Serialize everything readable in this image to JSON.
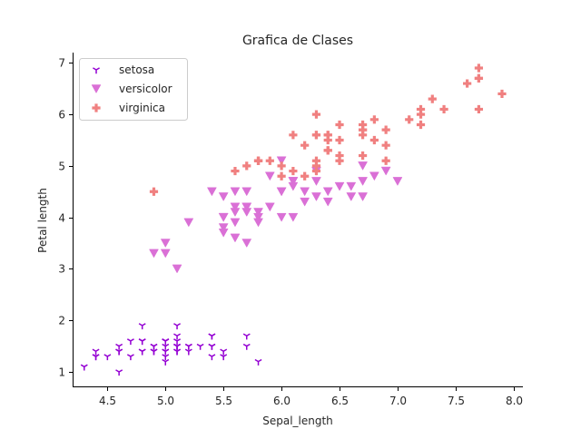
{
  "chart_data": {
    "type": "scatter",
    "title": "Grafica de Clases",
    "xlabel": "Sepal_length",
    "ylabel": "Petal length",
    "xlim": [
      4.2,
      8.08
    ],
    "ylim": [
      0.7,
      7.2
    ],
    "xticks": [
      4.5,
      5.0,
      5.5,
      6.0,
      6.5,
      7.0,
      7.5,
      8.0
    ],
    "xtick_labels": [
      "4.5",
      "5.0",
      "5.5",
      "6.0",
      "6.5",
      "7.0",
      "7.5",
      "8.0"
    ],
    "yticks": [
      1,
      2,
      3,
      4,
      5,
      6,
      7
    ],
    "ytick_labels": [
      "1",
      "2",
      "3",
      "4",
      "5",
      "6",
      "7"
    ],
    "grid": false,
    "legend_position": "top-left",
    "series": [
      {
        "name": "setosa",
        "marker": "tri-down",
        "color": "#9400D3",
        "points": [
          [
            5.1,
            1.4
          ],
          [
            4.9,
            1.4
          ],
          [
            4.7,
            1.3
          ],
          [
            4.6,
            1.5
          ],
          [
            5.0,
            1.4
          ],
          [
            5.4,
            1.7
          ],
          [
            4.6,
            1.4
          ],
          [
            5.0,
            1.5
          ],
          [
            4.4,
            1.4
          ],
          [
            4.9,
            1.5
          ],
          [
            5.4,
            1.5
          ],
          [
            4.8,
            1.6
          ],
          [
            4.8,
            1.4
          ],
          [
            4.3,
            1.1
          ],
          [
            5.8,
            1.2
          ],
          [
            5.7,
            1.5
          ],
          [
            5.4,
            1.3
          ],
          [
            5.1,
            1.4
          ],
          [
            5.7,
            1.7
          ],
          [
            5.1,
            1.5
          ],
          [
            5.4,
            1.7
          ],
          [
            5.1,
            1.5
          ],
          [
            4.6,
            1.0
          ],
          [
            5.1,
            1.7
          ],
          [
            4.8,
            1.9
          ],
          [
            5.0,
            1.6
          ],
          [
            5.0,
            1.6
          ],
          [
            5.2,
            1.5
          ],
          [
            5.2,
            1.4
          ],
          [
            4.7,
            1.6
          ],
          [
            4.8,
            1.6
          ],
          [
            5.4,
            1.5
          ],
          [
            5.2,
            1.5
          ],
          [
            5.5,
            1.4
          ],
          [
            4.9,
            1.5
          ],
          [
            5.0,
            1.2
          ],
          [
            5.5,
            1.3
          ],
          [
            4.9,
            1.4
          ],
          [
            4.4,
            1.3
          ],
          [
            5.1,
            1.5
          ],
          [
            5.0,
            1.3
          ],
          [
            4.5,
            1.3
          ],
          [
            4.4,
            1.3
          ],
          [
            5.0,
            1.6
          ],
          [
            5.1,
            1.9
          ],
          [
            4.8,
            1.4
          ],
          [
            5.1,
            1.6
          ],
          [
            4.6,
            1.4
          ],
          [
            5.3,
            1.5
          ],
          [
            5.0,
            1.4
          ]
        ]
      },
      {
        "name": "versicolor",
        "marker": "triangle-down",
        "color": "#DA70D6",
        "points": [
          [
            7.0,
            4.7
          ],
          [
            6.4,
            4.5
          ],
          [
            6.9,
            4.9
          ],
          [
            5.5,
            4.0
          ],
          [
            6.5,
            4.6
          ],
          [
            5.7,
            4.5
          ],
          [
            6.3,
            4.7
          ],
          [
            4.9,
            3.3
          ],
          [
            6.6,
            4.6
          ],
          [
            5.2,
            3.9
          ],
          [
            5.0,
            3.5
          ],
          [
            5.9,
            4.2
          ],
          [
            6.0,
            4.0
          ],
          [
            6.1,
            4.7
          ],
          [
            5.6,
            3.6
          ],
          [
            6.7,
            4.4
          ],
          [
            5.6,
            4.5
          ],
          [
            5.8,
            4.1
          ],
          [
            6.2,
            4.5
          ],
          [
            5.6,
            3.9
          ],
          [
            5.9,
            4.8
          ],
          [
            6.1,
            4.0
          ],
          [
            6.3,
            4.9
          ],
          [
            6.1,
            4.7
          ],
          [
            6.4,
            4.3
          ],
          [
            6.6,
            4.4
          ],
          [
            6.8,
            4.8
          ],
          [
            6.7,
            5.0
          ],
          [
            6.0,
            4.5
          ],
          [
            5.7,
            3.5
          ],
          [
            5.5,
            3.8
          ],
          [
            5.5,
            3.7
          ],
          [
            5.8,
            3.9
          ],
          [
            6.0,
            5.1
          ],
          [
            5.4,
            4.5
          ],
          [
            6.0,
            4.5
          ],
          [
            6.7,
            4.7
          ],
          [
            6.3,
            4.4
          ],
          [
            5.6,
            4.1
          ],
          [
            5.5,
            4.0
          ],
          [
            5.5,
            4.4
          ],
          [
            6.1,
            4.6
          ],
          [
            5.8,
            4.0
          ],
          [
            5.0,
            3.3
          ],
          [
            5.6,
            4.2
          ],
          [
            5.7,
            4.2
          ],
          [
            5.7,
            4.2
          ],
          [
            6.2,
            4.3
          ],
          [
            5.1,
            3.0
          ],
          [
            5.7,
            4.1
          ]
        ]
      },
      {
        "name": "virginica",
        "marker": "plus",
        "color": "#F08080",
        "points": [
          [
            6.3,
            6.0
          ],
          [
            5.8,
            5.1
          ],
          [
            7.1,
            5.9
          ],
          [
            6.3,
            5.6
          ],
          [
            6.5,
            5.8
          ],
          [
            7.6,
            6.6
          ],
          [
            4.9,
            4.5
          ],
          [
            7.3,
            6.3
          ],
          [
            6.7,
            5.8
          ],
          [
            7.2,
            6.1
          ],
          [
            6.5,
            5.1
          ],
          [
            6.4,
            5.3
          ],
          [
            6.8,
            5.5
          ],
          [
            5.7,
            5.0
          ],
          [
            5.8,
            5.1
          ],
          [
            6.4,
            5.3
          ],
          [
            6.5,
            5.5
          ],
          [
            7.7,
            6.7
          ],
          [
            7.7,
            6.9
          ],
          [
            6.0,
            5.0
          ],
          [
            6.9,
            5.7
          ],
          [
            5.6,
            4.9
          ],
          [
            7.7,
            6.7
          ],
          [
            6.3,
            4.9
          ],
          [
            6.7,
            5.7
          ],
          [
            7.2,
            6.0
          ],
          [
            6.2,
            4.8
          ],
          [
            6.1,
            4.9
          ],
          [
            6.4,
            5.6
          ],
          [
            7.2,
            5.8
          ],
          [
            7.4,
            6.1
          ],
          [
            7.9,
            6.4
          ],
          [
            6.4,
            5.6
          ],
          [
            6.3,
            5.1
          ],
          [
            6.1,
            5.6
          ],
          [
            7.7,
            6.1
          ],
          [
            6.3,
            5.6
          ],
          [
            6.4,
            5.5
          ],
          [
            6.0,
            4.8
          ],
          [
            6.9,
            5.4
          ],
          [
            6.7,
            5.6
          ],
          [
            6.9,
            5.1
          ],
          [
            5.8,
            5.1
          ],
          [
            6.8,
            5.9
          ],
          [
            6.7,
            5.7
          ],
          [
            6.7,
            5.2
          ],
          [
            6.3,
            5.0
          ],
          [
            6.5,
            5.2
          ],
          [
            6.2,
            5.4
          ],
          [
            5.9,
            5.1
          ]
        ]
      }
    ]
  }
}
